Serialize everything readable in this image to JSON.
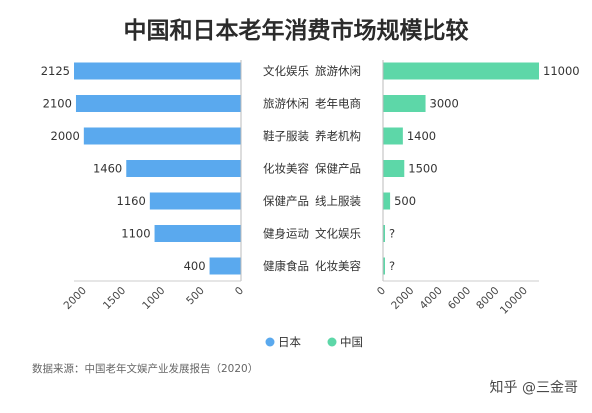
{
  "chart_data": {
    "type": "bar",
    "title": "中国和日本老年消费市场规模比较",
    "series": [
      {
        "name": "日本",
        "color": "#5aa9ee",
        "categories": [
          "文化娱乐",
          "旅游休闲",
          "鞋子服装",
          "化妆美容",
          "保健产品",
          "健身运动",
          "健康食品"
        ],
        "values": [
          2125,
          2100,
          2000,
          1460,
          1160,
          1100,
          400
        ],
        "value_labels": [
          "2125",
          "2100",
          "2000",
          "1460",
          "1160",
          "1100",
          "400"
        ],
        "xlim": [
          0,
          2125
        ],
        "ticks": [
          2000,
          1500,
          1000,
          500,
          0
        ]
      },
      {
        "name": "中国",
        "color": "#5dd7a8",
        "categories": [
          "旅游休闲",
          "老年电商",
          "养老机构",
          "保健产品",
          "线上服装",
          "文化娱乐",
          "化妆美容"
        ],
        "values": [
          11000,
          3000,
          1400,
          1500,
          500,
          null,
          null
        ],
        "value_labels": [
          "11000",
          "3000",
          "1400",
          "1500",
          "500",
          "?",
          "?"
        ],
        "xlim": [
          0,
          11000
        ],
        "ticks": [
          0,
          2000,
          4000,
          6000,
          8000,
          10000
        ]
      }
    ],
    "legend": [
      "日本",
      "中国"
    ],
    "legend_position": "bottom-center",
    "source": "数据来源：中国老年文娱产业发展报告（2020）"
  },
  "watermark": "知乎 @三金哥"
}
